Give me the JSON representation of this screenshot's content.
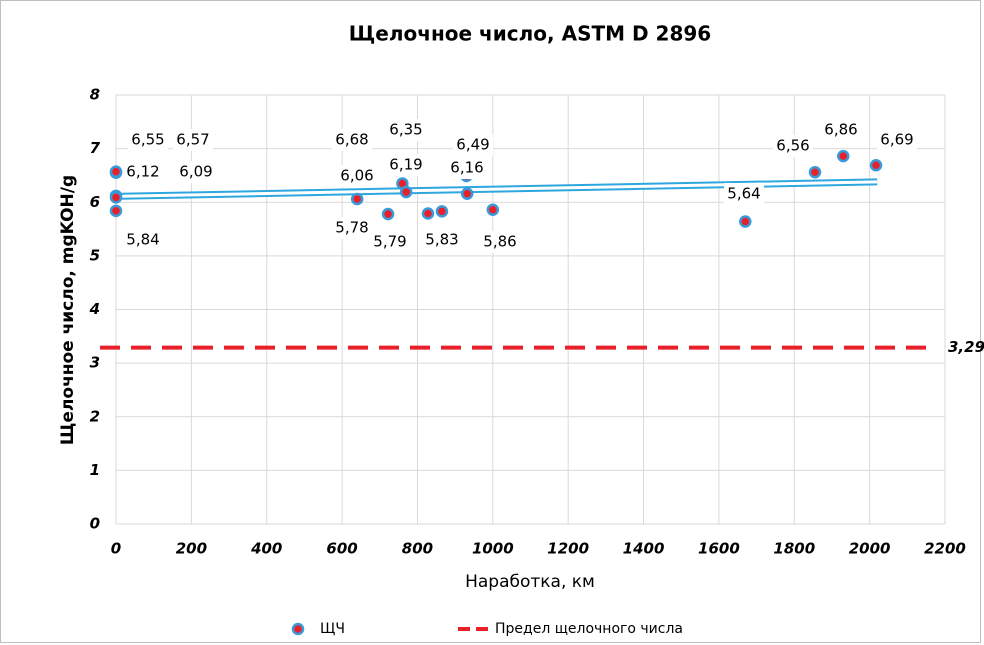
{
  "chart_data": {
    "type": "scatter",
    "title": "Щелочное число, ASTM D 2896",
    "x_label": "Наработка,  км",
    "y_label": "Щелочное число, mgKOH/g",
    "xlim": [
      0,
      2200
    ],
    "xticks": [
      0,
      200,
      400,
      600,
      800,
      1000,
      1200,
      1400,
      1600,
      1800,
      2000,
      2200
    ],
    "ylim": [
      0,
      8
    ],
    "yticks": [
      0,
      1,
      2,
      3,
      4,
      5,
      6,
      7,
      8
    ],
    "grid": true,
    "series": [
      {
        "name": "ЩЧ",
        "color": "#e8202a",
        "edge_color": "#3a9ad9",
        "x": [
          0,
          0,
          0,
          0,
          0,
          640,
          722,
          750,
          760,
          770,
          828,
          865,
          930,
          932,
          1000,
          1670,
          1855,
          1930,
          2017
        ],
        "values": [
          6.55,
          6.57,
          6.12,
          6.09,
          5.84,
          6.06,
          5.78,
          6.68,
          6.35,
          6.19,
          5.79,
          5.83,
          6.49,
          6.16,
          5.86,
          5.64,
          6.56,
          6.86,
          6.69
        ],
        "value_labels": [
          "6,55",
          "6,57",
          "6,12",
          "6,09",
          "5,84",
          "6,06",
          "5,78",
          "6,68",
          "6,35",
          "6,19",
          "5,79",
          "5,83",
          "6,49",
          "6,16",
          "5,86",
          "5,64",
          "6,56",
          "6,86",
          "6,69"
        ]
      }
    ],
    "trendline": {
      "x": [
        0,
        2020
      ],
      "values": [
        6.11,
        6.38
      ],
      "color": "#2ea6df"
    },
    "limit": {
      "name": "Предел щелочного числа",
      "color": "#e8202a",
      "values": [
        3.29
      ],
      "value_labels": [
        "3,29"
      ]
    },
    "legend": "bottom"
  }
}
